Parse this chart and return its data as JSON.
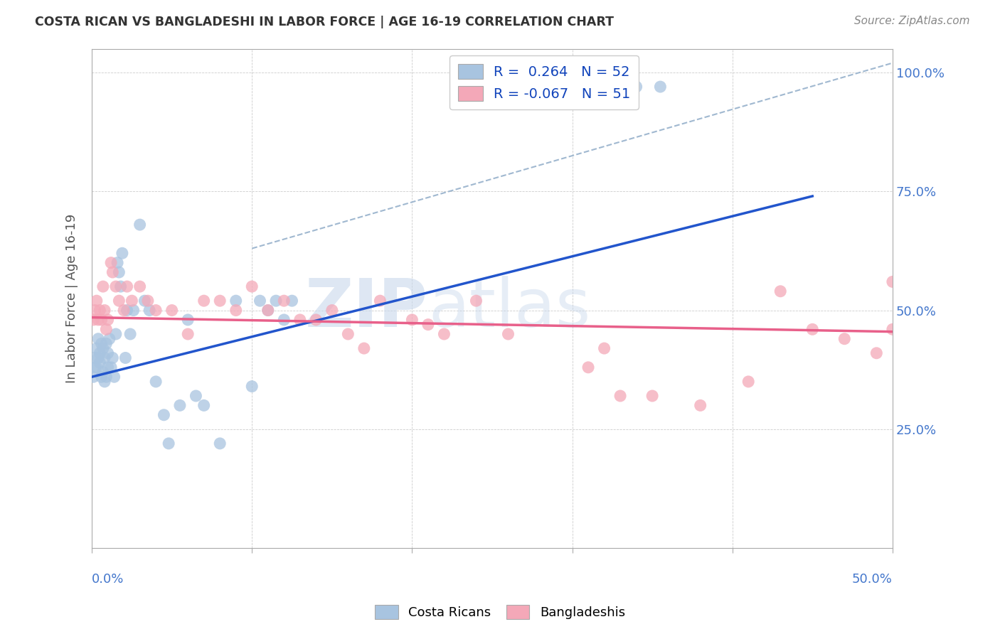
{
  "title": "COSTA RICAN VS BANGLADESHI IN LABOR FORCE | AGE 16-19 CORRELATION CHART",
  "source": "Source: ZipAtlas.com",
  "ylabel": "In Labor Force | Age 16-19",
  "x_range": [
    0.0,
    0.5
  ],
  "y_range": [
    0.0,
    1.05
  ],
  "costa_rican_color": "#a8c4e0",
  "bangladeshi_color": "#f4a8b8",
  "blue_line_color": "#2255cc",
  "pink_line_color": "#e8608a",
  "dashed_line_color": "#a0b8d0",
  "watermark_zip": "ZIP",
  "watermark_atlas": "atlas",
  "legend_R1": "R =  0.264",
  "legend_N1": "N = 52",
  "legend_R2": "R = -0.067",
  "legend_N2": "N = 51",
  "costa_rican_x": [
    0.001,
    0.002,
    0.002,
    0.003,
    0.003,
    0.004,
    0.004,
    0.005,
    0.005,
    0.006,
    0.006,
    0.007,
    0.007,
    0.008,
    0.008,
    0.009,
    0.009,
    0.01,
    0.01,
    0.011,
    0.012,
    0.013,
    0.014,
    0.015,
    0.016,
    0.017,
    0.018,
    0.019,
    0.021,
    0.022,
    0.024,
    0.026,
    0.03,
    0.033,
    0.036,
    0.04,
    0.045,
    0.048,
    0.055,
    0.06,
    0.065,
    0.07,
    0.08,
    0.09,
    0.1,
    0.105,
    0.11,
    0.115,
    0.12,
    0.125,
    0.34,
    0.355
  ],
  "costa_rican_y": [
    0.36,
    0.4,
    0.38,
    0.42,
    0.38,
    0.44,
    0.4,
    0.41,
    0.39,
    0.43,
    0.36,
    0.42,
    0.37,
    0.4,
    0.35,
    0.43,
    0.36,
    0.41,
    0.38,
    0.44,
    0.38,
    0.4,
    0.36,
    0.45,
    0.6,
    0.58,
    0.55,
    0.62,
    0.4,
    0.5,
    0.45,
    0.5,
    0.68,
    0.52,
    0.5,
    0.35,
    0.28,
    0.22,
    0.3,
    0.48,
    0.32,
    0.3,
    0.22,
    0.52,
    0.34,
    0.52,
    0.5,
    0.52,
    0.48,
    0.52,
    0.97,
    0.97
  ],
  "bangladeshi_x": [
    0.001,
    0.002,
    0.003,
    0.004,
    0.005,
    0.006,
    0.007,
    0.008,
    0.009,
    0.01,
    0.012,
    0.013,
    0.015,
    0.017,
    0.02,
    0.022,
    0.025,
    0.03,
    0.035,
    0.04,
    0.05,
    0.06,
    0.07,
    0.08,
    0.09,
    0.1,
    0.11,
    0.12,
    0.13,
    0.14,
    0.15,
    0.16,
    0.17,
    0.18,
    0.2,
    0.21,
    0.22,
    0.24,
    0.26,
    0.31,
    0.32,
    0.33,
    0.35,
    0.38,
    0.41,
    0.43,
    0.45,
    0.47,
    0.49,
    0.5,
    0.5
  ],
  "bangladeshi_y": [
    0.48,
    0.5,
    0.52,
    0.48,
    0.5,
    0.48,
    0.55,
    0.5,
    0.46,
    0.48,
    0.6,
    0.58,
    0.55,
    0.52,
    0.5,
    0.55,
    0.52,
    0.55,
    0.52,
    0.5,
    0.5,
    0.45,
    0.52,
    0.52,
    0.5,
    0.55,
    0.5,
    0.52,
    0.48,
    0.48,
    0.5,
    0.45,
    0.42,
    0.52,
    0.48,
    0.47,
    0.45,
    0.52,
    0.45,
    0.38,
    0.42,
    0.32,
    0.32,
    0.3,
    0.35,
    0.54,
    0.46,
    0.44,
    0.41,
    0.56,
    0.46
  ],
  "blue_line_x": [
    0.0,
    0.45
  ],
  "blue_line_y": [
    0.36,
    0.74
  ],
  "pink_line_x": [
    0.0,
    0.5
  ],
  "pink_line_y": [
    0.485,
    0.455
  ],
  "dashed_line_x": [
    0.1,
    0.5
  ],
  "dashed_line_y": [
    0.63,
    1.02
  ]
}
